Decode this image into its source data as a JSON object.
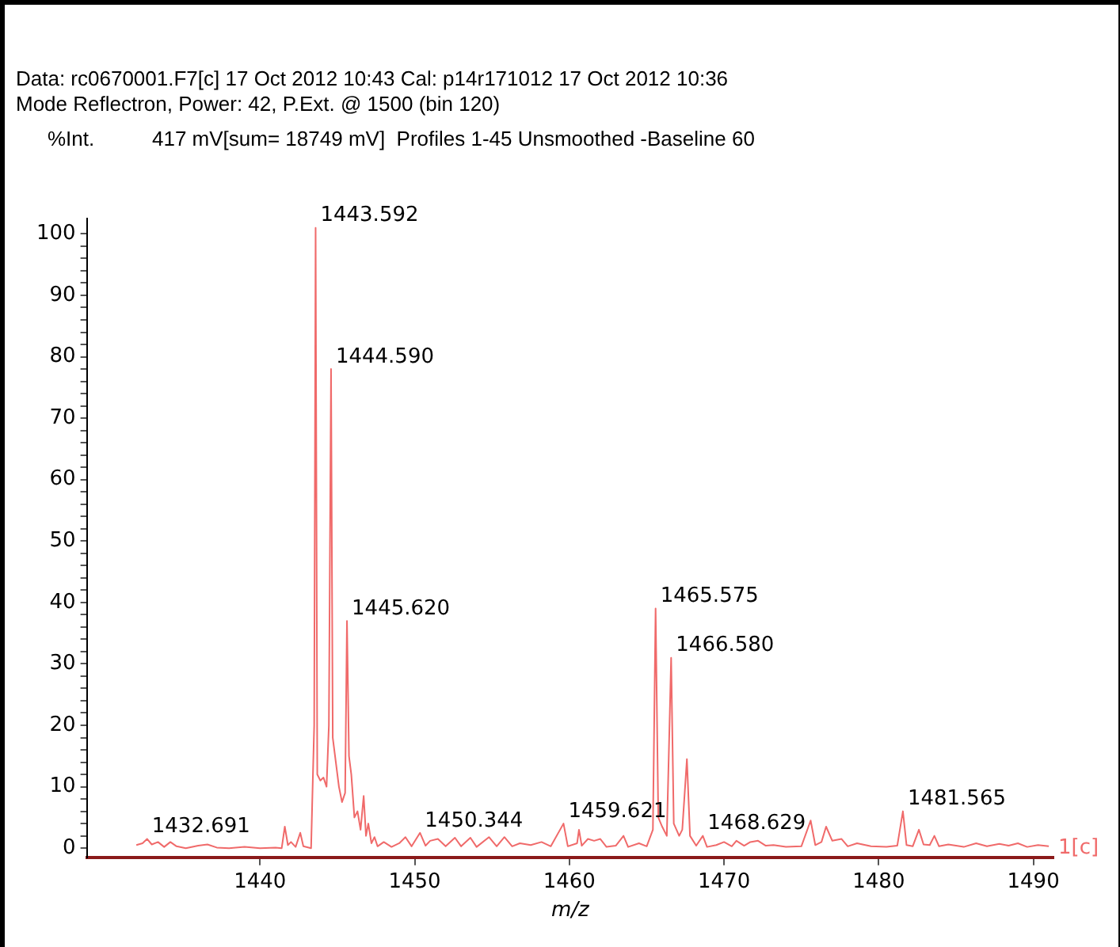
{
  "chart_data": {
    "type": "line",
    "title": "Data: rc0670001.F7[c] 17 Oct 2012 10:43 Cal: p14r171012 17 Oct 2012 10:36",
    "subtitle": "Mode Reflectron, Power: 42, P.Ext. @ 1500 (bin 120)",
    "ylabel": "%Int.",
    "xlabel": "m/z",
    "xlim": [
      1428.8,
      1491.3
    ],
    "xticks": [
      1440,
      1450,
      1460,
      1470,
      1480,
      1490
    ],
    "ylim": [
      -1.5,
      102.5
    ],
    "yticks": [
      0,
      {
        "value": 2,
        "label": null
      },
      {
        "value": 4,
        "label": null
      },
      {
        "value": 6,
        "label": null
      },
      {
        "value": 8,
        "label": null
      },
      10,
      {
        "value": 12,
        "label": null
      },
      {
        "value": 14,
        "label": null
      },
      {
        "value": 16,
        "label": null
      },
      {
        "value": 18,
        "label": null
      },
      20,
      {
        "value": 22,
        "label": null
      },
      {
        "value": 24,
        "label": null
      },
      {
        "value": 26,
        "label": null
      },
      {
        "value": 28,
        "label": null
      },
      30,
      {
        "value": 32,
        "label": null
      },
      {
        "value": 34,
        "label": null
      },
      {
        "value": 36,
        "label": null
      },
      {
        "value": 38,
        "label": null
      },
      40,
      {
        "value": 42,
        "label": null
      },
      {
        "value": 44,
        "label": null
      },
      {
        "value": 46,
        "label": null
      },
      {
        "value": 48,
        "label": null
      },
      50,
      {
        "value": 52,
        "label": null
      },
      {
        "value": 54,
        "label": null
      },
      {
        "value": 56,
        "label": null
      },
      {
        "value": 58,
        "label": null
      },
      60,
      {
        "value": 62,
        "label": null
      },
      {
        "value": 64,
        "label": null
      },
      {
        "value": 66,
        "label": null
      },
      {
        "value": 68,
        "label": null
      },
      70,
      {
        "value": 72,
        "label": null
      },
      {
        "value": 74,
        "label": null
      },
      {
        "value": 76,
        "label": null
      },
      {
        "value": 78,
        "label": null
      },
      80,
      {
        "value": 82,
        "label": null
      },
      {
        "value": 84,
        "label": null
      },
      {
        "value": 86,
        "label": null
      },
      {
        "value": 88,
        "label": null
      },
      90,
      {
        "value": 92,
        "label": null
      },
      {
        "value": 94,
        "label": null
      },
      {
        "value": 96,
        "label": null
      },
      {
        "value": 98,
        "label": null
      },
      100
    ],
    "grid": false,
    "legend": false,
    "marker": "none",
    "line_style": "solid",
    "series": [
      {
        "name": "1[c]",
        "color": "#f06a6a",
        "x": [
          1432.0,
          1432.4,
          1432.7,
          1433.0,
          1433.4,
          1433.8,
          1434.2,
          1434.6,
          1435.2,
          1436.0,
          1436.6,
          1437.2,
          1438.0,
          1439.0,
          1440.0,
          1441.0,
          1441.4,
          1441.6,
          1441.8,
          1442.0,
          1442.3,
          1442.6,
          1442.8,
          1443.3,
          1443.5,
          1443.592,
          1443.7,
          1443.9,
          1444.1,
          1444.3,
          1444.45,
          1444.59,
          1444.7,
          1444.9,
          1445.1,
          1445.3,
          1445.5,
          1445.62,
          1445.75,
          1445.9,
          1446.1,
          1446.3,
          1446.5,
          1446.7,
          1446.85,
          1447.0,
          1447.2,
          1447.4,
          1447.6,
          1448.0,
          1448.5,
          1449.0,
          1449.4,
          1449.8,
          1450.344,
          1450.7,
          1451.0,
          1451.5,
          1452.0,
          1452.6,
          1453.0,
          1453.6,
          1454.0,
          1454.8,
          1455.3,
          1455.8,
          1456.3,
          1456.8,
          1457.5,
          1458.2,
          1458.8,
          1459.621,
          1459.9,
          1460.5,
          1460.621,
          1460.8,
          1461.2,
          1461.6,
          1462.0,
          1462.4,
          1463.0,
          1463.5,
          1463.8,
          1464.5,
          1465.0,
          1465.4,
          1465.575,
          1465.75,
          1466.0,
          1466.3,
          1466.58,
          1466.75,
          1467.1,
          1467.3,
          1467.6,
          1467.8,
          1468.2,
          1468.629,
          1468.9,
          1469.5,
          1470.0,
          1470.5,
          1470.8,
          1471.3,
          1471.7,
          1472.2,
          1472.7,
          1473.2,
          1474.0,
          1475.0,
          1475.6,
          1475.9,
          1476.3,
          1476.6,
          1477.0,
          1477.6,
          1478.0,
          1478.6,
          1479.5,
          1480.5,
          1481.2,
          1481.565,
          1481.8,
          1482.2,
          1482.6,
          1482.9,
          1483.3,
          1483.6,
          1483.9,
          1484.5,
          1485.5,
          1486.3,
          1487.0,
          1487.8,
          1488.4,
          1489.0,
          1489.6,
          1490.3,
          1491.0
        ],
        "values": [
          0.5,
          0.8,
          1.5,
          0.6,
          1.0,
          0.2,
          1.0,
          0.3,
          0.0,
          0.4,
          0.6,
          0.1,
          0.0,
          0.2,
          0.0,
          0.1,
          0.0,
          3.5,
          0.5,
          1.0,
          0.2,
          2.5,
          0.3,
          0.0,
          20,
          101,
          12,
          11,
          11.5,
          10,
          20,
          78,
          18,
          14,
          10,
          7.5,
          9,
          37,
          15,
          12,
          5,
          6,
          3,
          8.5,
          2,
          4,
          0.8,
          1.8,
          0.3,
          1.0,
          0.2,
          0.8,
          1.8,
          0.3,
          2.5,
          0.4,
          1.2,
          1.5,
          0.3,
          1.7,
          0.3,
          1.7,
          0.2,
          1.8,
          0.3,
          1.8,
          0.3,
          0.8,
          0.5,
          1.0,
          0.3,
          4,
          0.3,
          0.8,
          3,
          0.4,
          1.5,
          1.2,
          1.5,
          0.2,
          0.4,
          2.0,
          0.2,
          0.8,
          0.3,
          3,
          39,
          5,
          3.5,
          2,
          31,
          4,
          2,
          3,
          14.5,
          2,
          0.4,
          2,
          0.2,
          0.5,
          1.0,
          0.3,
          1.2,
          0.4,
          1.0,
          1.2,
          0.4,
          0.5,
          0.2,
          0.3,
          4.5,
          0.5,
          1,
          3.5,
          1.2,
          1.5,
          0.3,
          0.8,
          0.3,
          0.2,
          0.4,
          6,
          0.5,
          0.3,
          3,
          0.6,
          0.5,
          2,
          0.3,
          0.6,
          0.2,
          0.8,
          0.3,
          0.7,
          0.4,
          0.8,
          0.2,
          0.5,
          0.3
        ]
      }
    ],
    "annotations": [
      "417 mV[sum= 18749 mV]  Profiles 1-45 Unsmoothed -Baseline 60",
      {
        "text": "1432.691",
        "x": 1432.7,
        "y": 1.5
      },
      {
        "text": "1443.592",
        "x": 1443.592,
        "y": 101
      },
      {
        "text": "1444.590",
        "x": 1444.59,
        "y": 78
      },
      {
        "text": "1445.620",
        "x": 1445.62,
        "y": 37
      },
      {
        "text": "1450.344",
        "x": 1450.344,
        "y": 2.5
      },
      {
        "text": "1459.621",
        "x": 1459.621,
        "y": 4
      },
      {
        "text": "1465.575",
        "x": 1465.575,
        "y": 39
      },
      {
        "text": "1466.580",
        "x": 1466.58,
        "y": 31
      },
      {
        "text": "1468.629",
        "x": 1468.629,
        "y": 2
      },
      {
        "text": "1481.565",
        "x": 1481.565,
        "y": 6
      }
    ]
  }
}
